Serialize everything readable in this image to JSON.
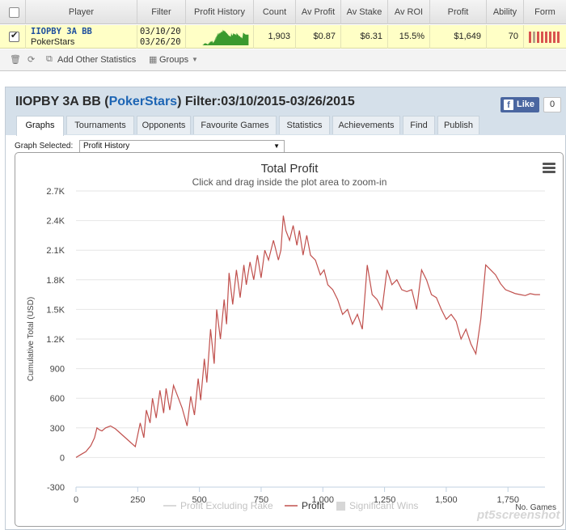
{
  "table": {
    "headers": {
      "player": "Player",
      "filter": "Filter",
      "profit_history": "Profit History",
      "count": "Count",
      "av_profit": "Av Profit",
      "av_stake": "Av Stake",
      "av_roi": "Av ROI",
      "profit": "Profit",
      "ability": "Ability",
      "form": "Form"
    },
    "row": {
      "checked": true,
      "player_name": "IIOPBY 3A BB",
      "player_site": "PokerStars",
      "filter_line1": "03/10/20",
      "filter_line2": "03/26/20",
      "count": "1,903",
      "av_profit": "$0.87",
      "av_stake": "$6.31",
      "av_roi": "15.5%",
      "profit": "$1,649",
      "ability": "70"
    }
  },
  "toolbar": {
    "add_stats": "Add Other Statistics",
    "groups": "Groups"
  },
  "panel": {
    "title_name": "IIOPBY 3A BB (",
    "title_site": "PokerStars",
    "title_rest": ") Filter:03/10/2015-03/26/2015",
    "like": "Like",
    "like_count": "0",
    "tabs": [
      "Graphs",
      "Tournaments",
      "Opponents",
      "Favourite Games",
      "Statistics",
      "Achievements",
      "Find",
      "Publish"
    ],
    "graph_selected_label": "Graph Selected:",
    "graph_selected_value": "Profit History"
  },
  "watermark": "pt5screenshot",
  "colors": {
    "profit_line": "#c0504d",
    "sparkline": "#3a9a2e",
    "legend_inactive": "#cccccc",
    "highlight_row": "#ffffc6"
  },
  "chart_data": {
    "type": "line",
    "title": "Total Profit",
    "subtitle": "Click and drag inside the plot area to zoom-in",
    "ylabel": "Cumulative Total (USD)",
    "xlabel": "No. Games",
    "ylim": [
      -300,
      2700
    ],
    "xlim": [
      0,
      1900
    ],
    "yticks": [
      -300,
      0,
      300,
      600,
      900,
      "1.2K",
      "1.5K",
      "1.8K",
      "2.1K",
      "2.4K",
      "2.7K"
    ],
    "ytick_values": [
      -300,
      0,
      300,
      600,
      900,
      1200,
      1500,
      1800,
      2100,
      2400,
      2700
    ],
    "xticks": [
      "0",
      "250",
      "500",
      "750",
      "1,000",
      "1,250",
      "1,500",
      "1,750"
    ],
    "xtick_values": [
      0,
      250,
      500,
      750,
      1000,
      1250,
      1500,
      1750
    ],
    "grid": true,
    "legend": [
      {
        "name": "Profit Excluding Rake",
        "active": false
      },
      {
        "name": "Profit",
        "active": true
      },
      {
        "name": "Significant Wins",
        "active": false
      }
    ],
    "series": [
      {
        "name": "Profit",
        "x": [
          0,
          20,
          40,
          60,
          75,
          85,
          95,
          105,
          120,
          140,
          160,
          200,
          240,
          260,
          275,
          285,
          300,
          310,
          325,
          340,
          355,
          365,
          380,
          395,
          415,
          430,
          450,
          465,
          480,
          495,
          505,
          520,
          530,
          545,
          560,
          570,
          585,
          600,
          610,
          620,
          635,
          650,
          665,
          680,
          690,
          705,
          720,
          735,
          750,
          765,
          780,
          800,
          820,
          830,
          840,
          850,
          865,
          880,
          895,
          905,
          920,
          935,
          950,
          970,
          990,
          1005,
          1020,
          1040,
          1060,
          1080,
          1100,
          1120,
          1140,
          1160,
          1180,
          1200,
          1220,
          1240,
          1260,
          1280,
          1300,
          1320,
          1340,
          1360,
          1380,
          1400,
          1420,
          1440,
          1460,
          1480,
          1500,
          1520,
          1540,
          1560,
          1580,
          1600,
          1620,
          1640,
          1660,
          1680,
          1700,
          1720,
          1740,
          1760,
          1780,
          1800,
          1820,
          1840,
          1860,
          1880
        ],
        "y": [
          0,
          30,
          60,
          120,
          200,
          300,
          280,
          270,
          300,
          320,
          290,
          200,
          110,
          350,
          200,
          480,
          350,
          600,
          400,
          680,
          450,
          700,
          480,
          730,
          600,
          500,
          320,
          620,
          430,
          800,
          580,
          1000,
          760,
          1300,
          950,
          1500,
          1200,
          1600,
          1350,
          1870,
          1550,
          1900,
          1620,
          1950,
          1750,
          1980,
          1800,
          2050,
          1820,
          2100,
          2000,
          2200,
          2000,
          2100,
          2450,
          2300,
          2200,
          2350,
          2150,
          2300,
          2050,
          2250,
          2050,
          2000,
          1850,
          1900,
          1750,
          1700,
          1600,
          1450,
          1500,
          1350,
          1450,
          1300,
          1950,
          1650,
          1600,
          1500,
          1900,
          1750,
          1800,
          1700,
          1680,
          1700,
          1500,
          1900,
          1800,
          1650,
          1620,
          1500,
          1400,
          1450,
          1380,
          1200,
          1300,
          1150,
          1050,
          1400,
          1950,
          1900,
          1850,
          1760,
          1700,
          1680,
          1660,
          1650,
          1640,
          1660,
          1650,
          1650
        ]
      }
    ]
  }
}
